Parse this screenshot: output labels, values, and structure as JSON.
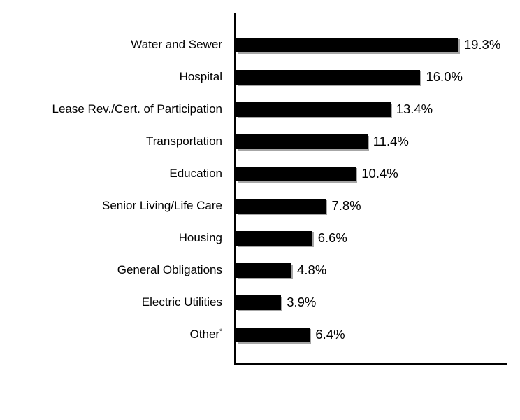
{
  "chart_data": {
    "type": "bar",
    "orientation": "horizontal",
    "title": "",
    "xlabel": "",
    "ylabel": "",
    "categories": [
      "Water and Sewer",
      "Hospital",
      "Lease Rev./Cert. of Participation",
      "Transportation",
      "Education",
      "Senior Living/Life Care",
      "Housing",
      "General Obligations",
      "Electric Utilities",
      "Other*"
    ],
    "values": [
      19.3,
      16.0,
      13.4,
      11.4,
      10.4,
      7.8,
      6.6,
      4.8,
      3.9,
      6.4
    ],
    "value_labels": [
      "19.3%",
      "16.0%",
      "13.4%",
      "11.4%",
      "10.4%",
      "7.8%",
      "6.6%",
      "4.8%",
      "3.9%",
      "6.4%"
    ],
    "xlim": [
      0,
      23.5
    ],
    "grid": false,
    "legend_position": "none",
    "bar_color": "#000000",
    "bar_shadow_color": "#a6a6a6",
    "axis_color": "#000000",
    "background_color": "#ffffff"
  }
}
